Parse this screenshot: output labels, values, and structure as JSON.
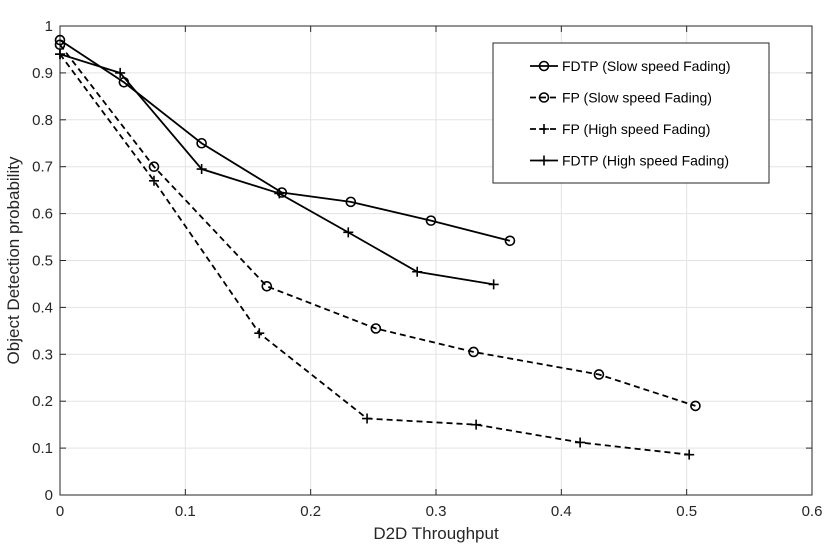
{
  "chart_data": {
    "type": "line",
    "title": "",
    "xlabel": "D2D Throughput",
    "ylabel": "Object Detection probability",
    "xlim": [
      0,
      0.6
    ],
    "ylim": [
      0,
      1
    ],
    "xticks": [
      0,
      0.1,
      0.2,
      0.3,
      0.4,
      0.5,
      0.6
    ],
    "yticks": [
      0,
      0.1,
      0.2,
      0.3,
      0.4,
      0.5,
      0.6,
      0.7,
      0.8,
      0.9,
      1
    ],
    "xtick_labels": [
      "0",
      "0.1",
      "0.2",
      "0.3",
      "0.4",
      "0.5",
      "0.6"
    ],
    "ytick_labels": [
      "0",
      "0.1",
      "0.2",
      "0.3",
      "0.4",
      "0.5",
      "0.6",
      "0.7",
      "0.8",
      "0.9",
      "1"
    ],
    "grid": true,
    "legend_position": "top-right",
    "series": [
      {
        "name": "FDTP (Slow speed Fading)",
        "line": "solid",
        "marker": "circle",
        "x": [
          0.0,
          0.051,
          0.113,
          0.177,
          0.232,
          0.296,
          0.359
        ],
        "y": [
          0.97,
          0.88,
          0.75,
          0.645,
          0.625,
          0.585,
          0.542
        ]
      },
      {
        "name": "FP (Slow speed Fading)",
        "line": "dashed",
        "marker": "circle",
        "x": [
          0.0,
          0.075,
          0.165,
          0.252,
          0.33,
          0.43,
          0.507
        ],
        "y": [
          0.96,
          0.7,
          0.445,
          0.355,
          0.305,
          0.257,
          0.19
        ]
      },
      {
        "name": "FP (High speed Fading)",
        "line": "dashed",
        "marker": "plus",
        "x": [
          0.0,
          0.075,
          0.159,
          0.245,
          0.332,
          0.415,
          0.502
        ],
        "y": [
          0.94,
          0.67,
          0.345,
          0.163,
          0.15,
          0.112,
          0.086
        ]
      },
      {
        "name": "FDTP (High speed Fading)",
        "line": "solid",
        "marker": "plus",
        "x": [
          0.0,
          0.048,
          0.113,
          0.175,
          0.23,
          0.285,
          0.346
        ],
        "y": [
          0.94,
          0.9,
          0.695,
          0.643,
          0.56,
          0.476,
          0.449
        ]
      }
    ]
  }
}
